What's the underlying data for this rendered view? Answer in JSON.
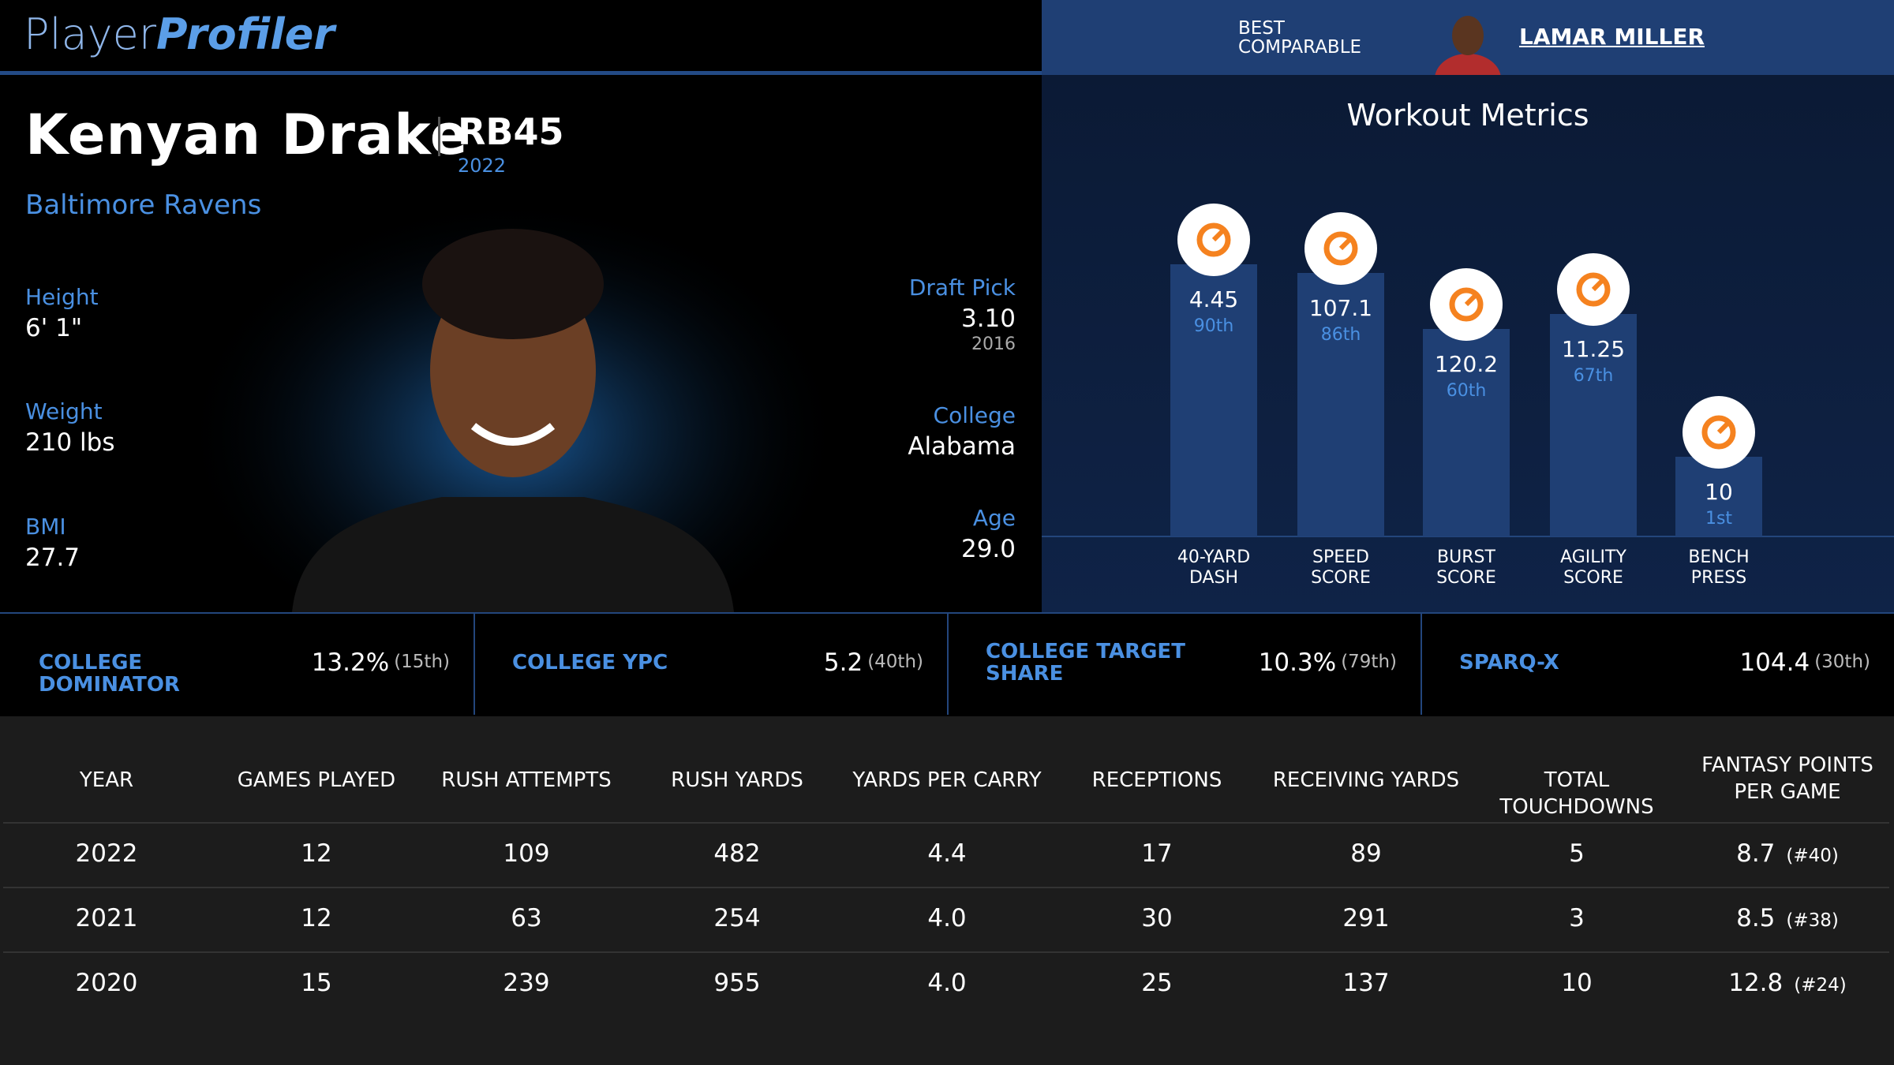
{
  "header": {
    "brand_first": "Player",
    "brand_second": "Profiler",
    "comparable_label": "BEST COMPARABLE",
    "comparable_name": "LAMAR MILLER"
  },
  "player": {
    "name": "Kenyan Drake",
    "position": "RB45",
    "year": "2022",
    "team": "Baltimore Ravens"
  },
  "bio_left": [
    {
      "label": "Height",
      "value": "6' 1\""
    },
    {
      "label": "Weight",
      "value": "210 lbs"
    },
    {
      "label": "BMI",
      "value": "27.7"
    }
  ],
  "bio_right": [
    {
      "label": "Draft Pick",
      "value": "3.10",
      "note": "2016"
    },
    {
      "label": "College",
      "value": "Alabama"
    },
    {
      "label": "Age",
      "value": "29.0"
    }
  ],
  "workout": {
    "title": "Workout Metrics",
    "metrics": [
      {
        "label": "40-YARD DASH",
        "value": "4.45",
        "percentile": {
          "value": 90,
          "label": "90th"
        }
      },
      {
        "label": "SPEED SCORE",
        "value": "107.1",
        "percentile": {
          "value": 86,
          "label": "86th"
        }
      },
      {
        "label": "BURST SCORE",
        "value": "120.2",
        "percentile": {
          "value": 60,
          "label": "60th"
        }
      },
      {
        "label": "AGILITY SCORE",
        "value": "11.25",
        "percentile": {
          "value": 67,
          "label": "67th"
        }
      },
      {
        "label": "BENCH PRESS",
        "value": "10",
        "percentile": {
          "value": 1,
          "label": "1st"
        }
      }
    ]
  },
  "college_stats": [
    {
      "label": "COLLEGE DOMINATOR",
      "value": "13.2%",
      "rank": "(15th)"
    },
    {
      "label": "COLLEGE YPC",
      "value": "5.2",
      "rank": "(40th)"
    },
    {
      "label": "COLLEGE TARGET SHARE",
      "value": "10.3%",
      "rank": "(79th)"
    },
    {
      "label": "SPARQ-X",
      "value": "104.4",
      "rank": "(30th)"
    }
  ],
  "table": {
    "headers": [
      "YEAR",
      "GAMES PLAYED",
      "RUSH ATTEMPTS",
      "RUSH YARDS",
      "YARDS PER CARRY",
      "RECEPTIONS",
      "RECEIVING YARDS",
      "TOTAL TOUCHDOWNS",
      "FANTASY POINTS PER GAME"
    ],
    "rows": [
      [
        "2022",
        "12",
        "109",
        "482",
        "4.4",
        "17",
        "89",
        "5",
        {
          "value": "8.7",
          "rank": "(#40)"
        }
      ],
      [
        "2021",
        "12",
        "63",
        "254",
        "4.0",
        "30",
        "291",
        "3",
        {
          "value": "8.5",
          "rank": "(#38)"
        }
      ],
      [
        "2020",
        "15",
        "239",
        "955",
        "4.0",
        "25",
        "137",
        "10",
        {
          "value": "12.8",
          "rank": "(#24)"
        }
      ]
    ]
  }
}
